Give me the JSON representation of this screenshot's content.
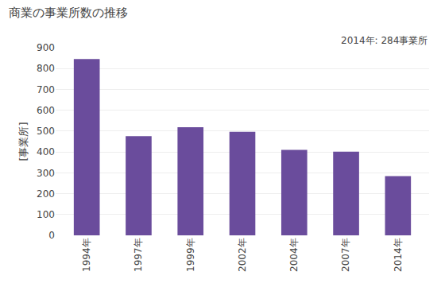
{
  "chart_data": {
    "type": "bar",
    "title": "商業の事業所数の推移",
    "ylabel": "[事業所]",
    "annotation": "2014年: 284事業所",
    "categories": [
      "1994年",
      "1997年",
      "1999年",
      "2002年",
      "2004年",
      "2007年",
      "2014年"
    ],
    "values": [
      846,
      476,
      519,
      497,
      410,
      401,
      284
    ],
    "color": "#6A4C9C",
    "ylim": [
      0,
      900
    ],
    "yticks": [
      0,
      100,
      200,
      300,
      400,
      500,
      600,
      700,
      800,
      900
    ],
    "grid": true
  }
}
